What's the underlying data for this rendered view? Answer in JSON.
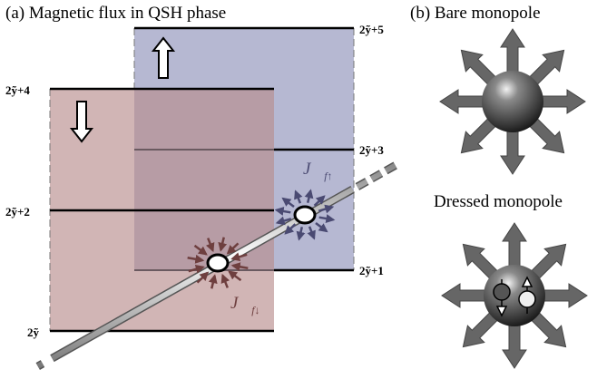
{
  "panel_a": {
    "title": "(a) Magnetic flux in QSH phase",
    "level_labels": [
      "2ỹ+5",
      "2ỹ+4",
      "2ỹ+3",
      "2ỹ+2",
      "2ỹ+1",
      "2ỹ"
    ],
    "current_up": {
      "symbol": "J⃗",
      "subscript": "f↑"
    },
    "current_down": {
      "symbol": "J⃗",
      "subscript": "f↓"
    }
  },
  "panel_b": {
    "title": "(b) Bare monopole",
    "dressed_title": "Dressed monopole"
  }
}
